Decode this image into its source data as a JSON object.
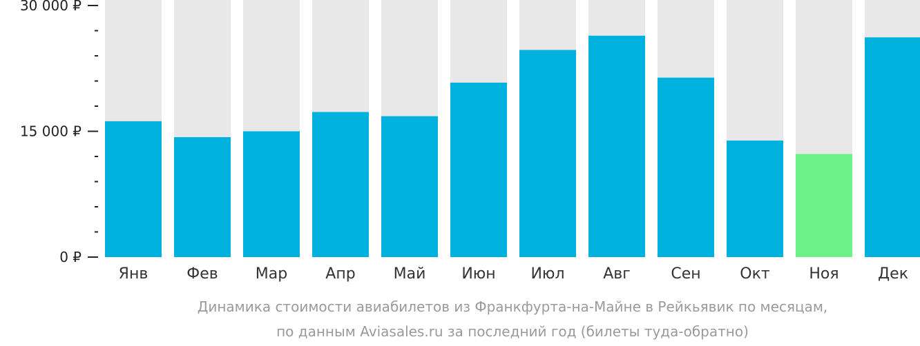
{
  "chart_data": {
    "type": "bar",
    "categories": [
      "Янв",
      "Фев",
      "Мар",
      "Апр",
      "Май",
      "Июн",
      "Июл",
      "Авг",
      "Сен",
      "Окт",
      "Ноя",
      "Дек"
    ],
    "values": [
      16200,
      14300,
      15000,
      17300,
      16800,
      20800,
      24700,
      26400,
      21400,
      13900,
      12300,
      26200
    ],
    "ylim": [
      0,
      30000
    ],
    "yticks": [
      {
        "value": 0,
        "label": "0 ₽"
      },
      {
        "value": 15000,
        "label": "15 000 ₽"
      },
      {
        "value": 30000,
        "label": "30 000 ₽"
      }
    ],
    "minor_tick_step": 3000,
    "highlight_index": 10,
    "colors": {
      "bar": "#00b0dd",
      "highlight": "#6cf087",
      "background_bar": "#e8e8e8",
      "axis": "#222222"
    }
  },
  "caption": {
    "line1": "Динамика стоимости авиабилетов из Франкфурта-на-Майне в Рейкьявик по месяцам,",
    "line2": "по данным Aviasales.ru за последний год (билеты туда-обратно)"
  }
}
